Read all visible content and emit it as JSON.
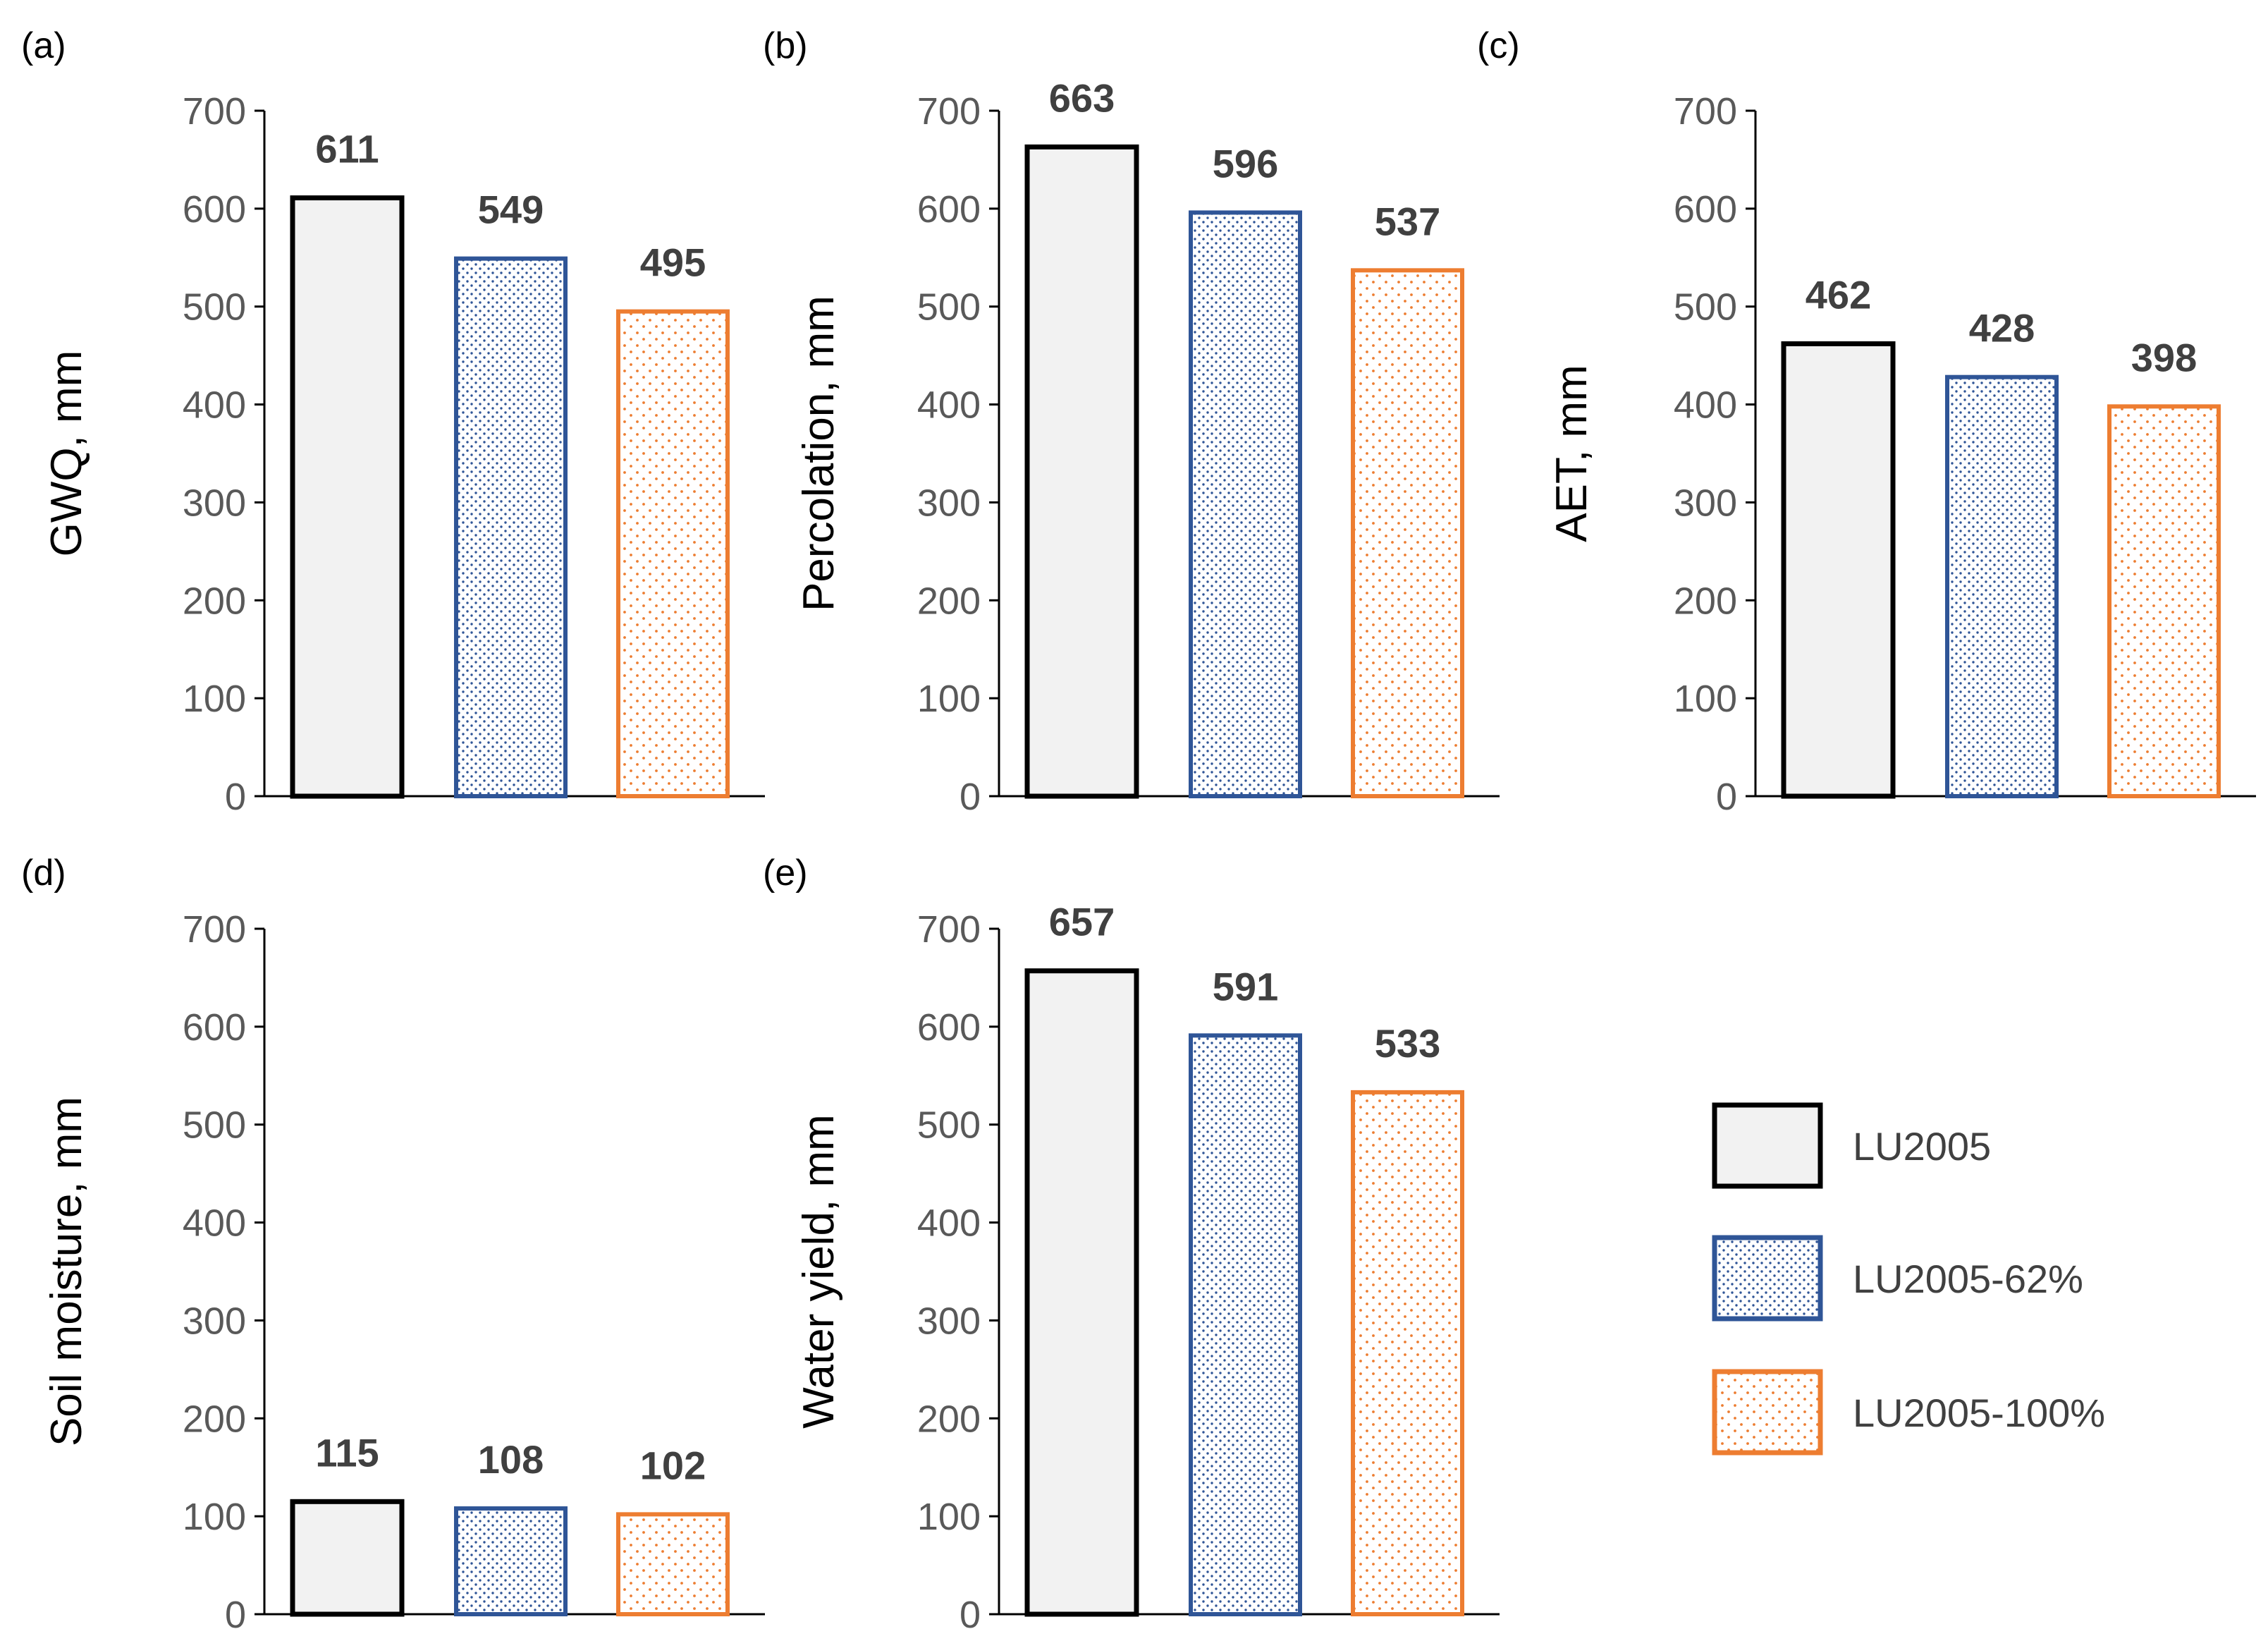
{
  "legend": [
    {
      "name": "LU2005",
      "fill": "#f2f2f2",
      "stroke": "#000000",
      "dot": ""
    },
    {
      "name": "LU2005-62%",
      "fill": "#ffffff",
      "stroke": "#2f5597",
      "dot": "#2f5597"
    },
    {
      "name": "LU2005-100%",
      "fill": "#ffffff",
      "stroke": "#ed7d31",
      "dot": "#ed7d31"
    }
  ],
  "chart_data": [
    {
      "type": "bar",
      "panel": "(a)",
      "ylabel": "GWQ, mm",
      "ylim": [
        0,
        700
      ],
      "yticks": [
        0,
        100,
        200,
        300,
        400,
        500,
        600,
        700
      ],
      "categories": [
        "LU2005",
        "LU2005-62%",
        "LU2005-100%"
      ],
      "values": [
        611,
        549,
        495
      ],
      "labels": [
        "611",
        "549",
        "495"
      ]
    },
    {
      "type": "bar",
      "panel": "(b)",
      "ylabel": "Percolation, mm",
      "ylim": [
        0,
        700
      ],
      "yticks": [
        0,
        100,
        200,
        300,
        400,
        500,
        600,
        700
      ],
      "categories": [
        "LU2005",
        "LU2005-62%",
        "LU2005-100%"
      ],
      "values": [
        663,
        596,
        537
      ],
      "labels": [
        "663",
        "596",
        "537"
      ]
    },
    {
      "type": "bar",
      "panel": "(c)",
      "ylabel": "AET, mm",
      "ylim": [
        0,
        700
      ],
      "yticks": [
        0,
        100,
        200,
        300,
        400,
        500,
        600,
        700
      ],
      "categories": [
        "LU2005",
        "LU2005-62%",
        "LU2005-100%"
      ],
      "values": [
        462,
        428,
        398
      ],
      "labels": [
        "462",
        "428",
        "398"
      ]
    },
    {
      "type": "bar",
      "panel": "(d)",
      "ylabel": "Soil moisture, mm",
      "ylim": [
        0,
        700
      ],
      "yticks": [
        0,
        100,
        200,
        300,
        400,
        500,
        600,
        700
      ],
      "categories": [
        "LU2005",
        "LU2005-62%",
        "LU2005-100%"
      ],
      "values": [
        115,
        108,
        102
      ],
      "labels": [
        "115",
        "108",
        "102"
      ]
    },
    {
      "type": "bar",
      "panel": "(e)",
      "ylabel": "Water yield, mm",
      "ylim": [
        0,
        700
      ],
      "yticks": [
        0,
        100,
        200,
        300,
        400,
        500,
        600,
        700
      ],
      "categories": [
        "LU2005",
        "LU2005-62%",
        "LU2005-100%"
      ],
      "values": [
        657,
        591,
        533
      ],
      "labels": [
        "657",
        "591",
        "533"
      ]
    }
  ]
}
